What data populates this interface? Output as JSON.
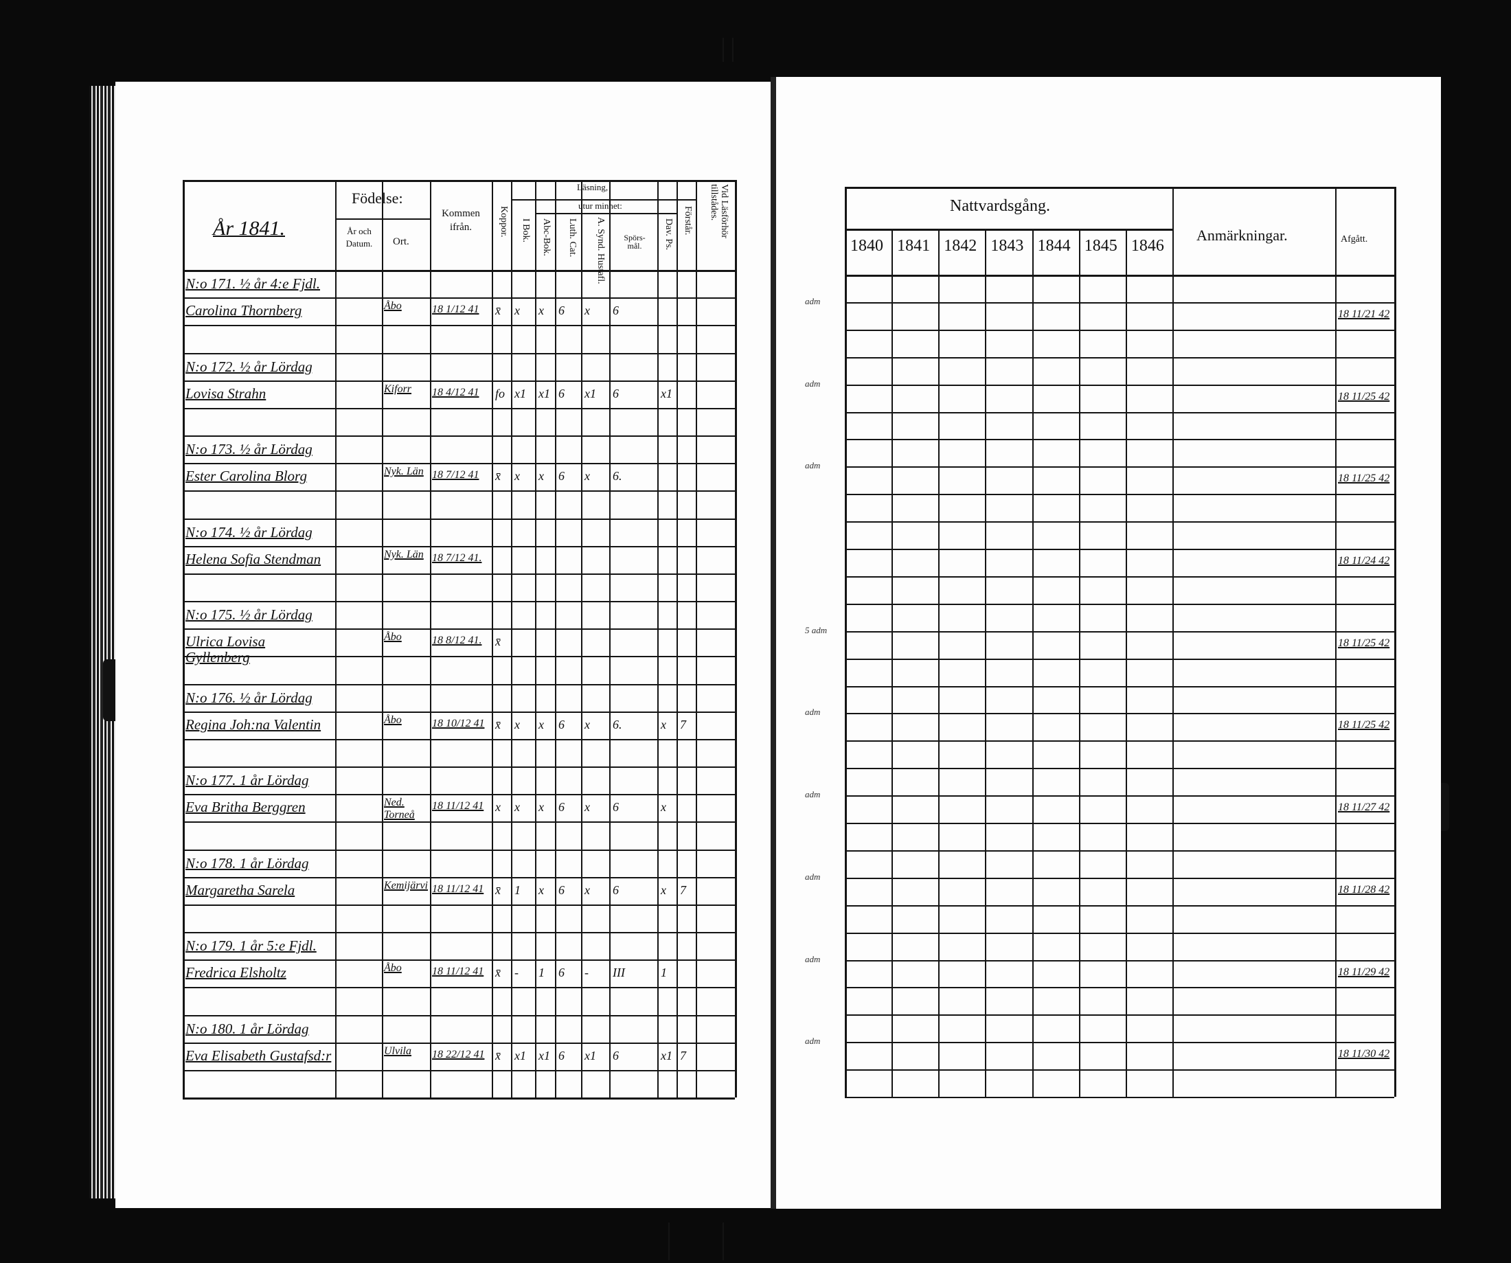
{
  "left_page": {
    "year_title": "År 1841.",
    "headers": {
      "fodelse": "Födelse:",
      "ar_och_datum": "År och Datum.",
      "ort": "Ort.",
      "kommen_ifran": "Kommen ifrån.",
      "koppor": "Koppor.",
      "lasning": "Läsning,",
      "i_bok": "I Bok.",
      "utur_minnet": "utur minnet:",
      "abc_bok": "Abc-Bok.",
      "luth_cat": "Luth. Cat.",
      "hustafla": "A. Synd. Hustafl.",
      "sporsmal": "Spörs-mål.",
      "dav_ps": "Dav. Ps.",
      "forstar": "Förstår.",
      "vid_lasforhor": "Vid Läsförhör tillstådes."
    },
    "entries": [
      {
        "number_line": "N:o 171. ½ år 4:e Fjdl.",
        "name": "Carolina Thornberg",
        "ort": "Åbo",
        "kommen": "18 1/12 41",
        "marks": [
          "x̄",
          "x",
          "x",
          "6",
          "x",
          "6",
          "",
          "",
          ""
        ]
      },
      {
        "number_line": "N:o 172. ½ år Lördag",
        "name": "Lovisa Strahn",
        "ort": "Kiforr",
        "kommen": "18 4/12 41",
        "marks": [
          "fo",
          "x1",
          "x1",
          "6",
          "x1",
          "6",
          "x1",
          "",
          ""
        ]
      },
      {
        "number_line": "N:o 173. ½ år Lördag",
        "name": "Ester Carolina Blorg",
        "ort": "Nyk. Län",
        "kommen": "18 7/12 41",
        "marks": [
          "x̄",
          "x",
          "x",
          "6",
          "x",
          "6.",
          "",
          "",
          ""
        ]
      },
      {
        "number_line": "N:o 174. ½ år Lördag",
        "name": "Helena Sofia Stendman",
        "ort": "Nyk. Län",
        "kommen": "18 7/12 41.",
        "marks": [
          "",
          "",
          "",
          "",
          "",
          "",
          "",
          "",
          ""
        ]
      },
      {
        "number_line": "N:o 175. ½ år Lördag",
        "name": "Ulrica Lovisa Gyllenberg",
        "ort": "Åbo",
        "kommen": "18 8/12 41.",
        "marks": [
          "x̄",
          "",
          "",
          "",
          "",
          "",
          "",
          "",
          ""
        ]
      },
      {
        "number_line": "N:o 176. ½ år Lördag",
        "name": "Regina Joh:na Valentin",
        "ort": "Åbo",
        "kommen": "18 10/12 41",
        "marks": [
          "x̄",
          "x",
          "x",
          "6",
          "x",
          "6.",
          "x",
          "7",
          ""
        ]
      },
      {
        "number_line": "N:o 177. 1 år Lördag",
        "name": "Eva Britha Berggren",
        "ort": "Ned. Torneå",
        "kommen": "18 11/12 41",
        "marks": [
          "x",
          "x",
          "x",
          "6",
          "x",
          "6",
          "x",
          "",
          ""
        ]
      },
      {
        "number_line": "N:o 178. 1 år Lördag",
        "name": "Margaretha Sarela",
        "ort": "Kemijärvi",
        "kommen": "18 11/12 41",
        "marks": [
          "x̄",
          "1",
          "x",
          "6",
          "x",
          "6",
          "x",
          "7",
          ""
        ]
      },
      {
        "number_line": "N:o 179. 1 år 5:e Fjdl.",
        "name": "Fredrica Elsholtz",
        "ort": "Åbo",
        "kommen": "18 11/12 41",
        "marks": [
          "x̄",
          "-",
          "1",
          "6",
          "-",
          "III",
          "1",
          "",
          ""
        ]
      },
      {
        "number_line": "N:o 180. 1 år Lördag",
        "name": "Eva Elisabeth Gustafsd:r",
        "ort": "Ulvila",
        "kommen": "18 22/12 41",
        "marks": [
          "x̄",
          "x1",
          "x1",
          "6",
          "x1",
          "6",
          "x1",
          "7",
          ""
        ]
      }
    ]
  },
  "right_page": {
    "headers": {
      "nattvardsgang": "Nattvardsgång.",
      "years": [
        "1840",
        "1841",
        "1842",
        "1843",
        "1844",
        "1845",
        "1846"
      ],
      "anmarkningar": "Anmärkningar.",
      "afgatt": "Afgått."
    },
    "rows": [
      {
        "margin_note": "adm",
        "afgatt": "18 11/21 42"
      },
      {
        "margin_note": "adm",
        "afgatt": "18 11/25 42"
      },
      {
        "margin_note": "adm",
        "afgatt": "18 11/25 42"
      },
      {
        "margin_note": "",
        "afgatt": "18 11/24 42"
      },
      {
        "margin_note": "5 adm",
        "afgatt": "18 11/25 42"
      },
      {
        "margin_note": "adm",
        "afgatt": "18 11/25 42"
      },
      {
        "margin_note": "adm",
        "afgatt": "18 11/27 42"
      },
      {
        "margin_note": "adm",
        "afgatt": "18 11/28 42"
      },
      {
        "margin_note": "adm",
        "afgatt": "18 11/29 42"
      },
      {
        "margin_note": "adm",
        "afgatt": "18 11/30 42"
      }
    ]
  }
}
